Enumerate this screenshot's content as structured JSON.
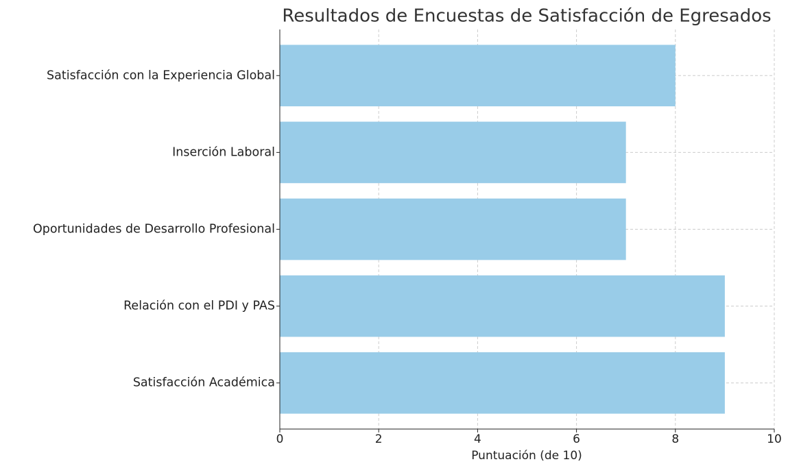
{
  "chart_data": {
    "type": "barh",
    "title": "Resultados de Encuestas de Satisfacción de Egresados",
    "xlabel": "Puntuación (de 10)",
    "categories": [
      "Satisfacción Académica",
      "Relación con el PDI y PAS",
      "Oportunidades de Desarrollo Profesional",
      "Inserción Laboral",
      "Satisfacción con la Experiencia Global"
    ],
    "values": [
      9,
      9,
      7,
      7,
      8
    ],
    "color": "#99cce8",
    "xlim": [
      0,
      10
    ],
    "xticks": [
      0,
      2,
      4,
      6,
      8,
      10
    ],
    "grid": true
  }
}
